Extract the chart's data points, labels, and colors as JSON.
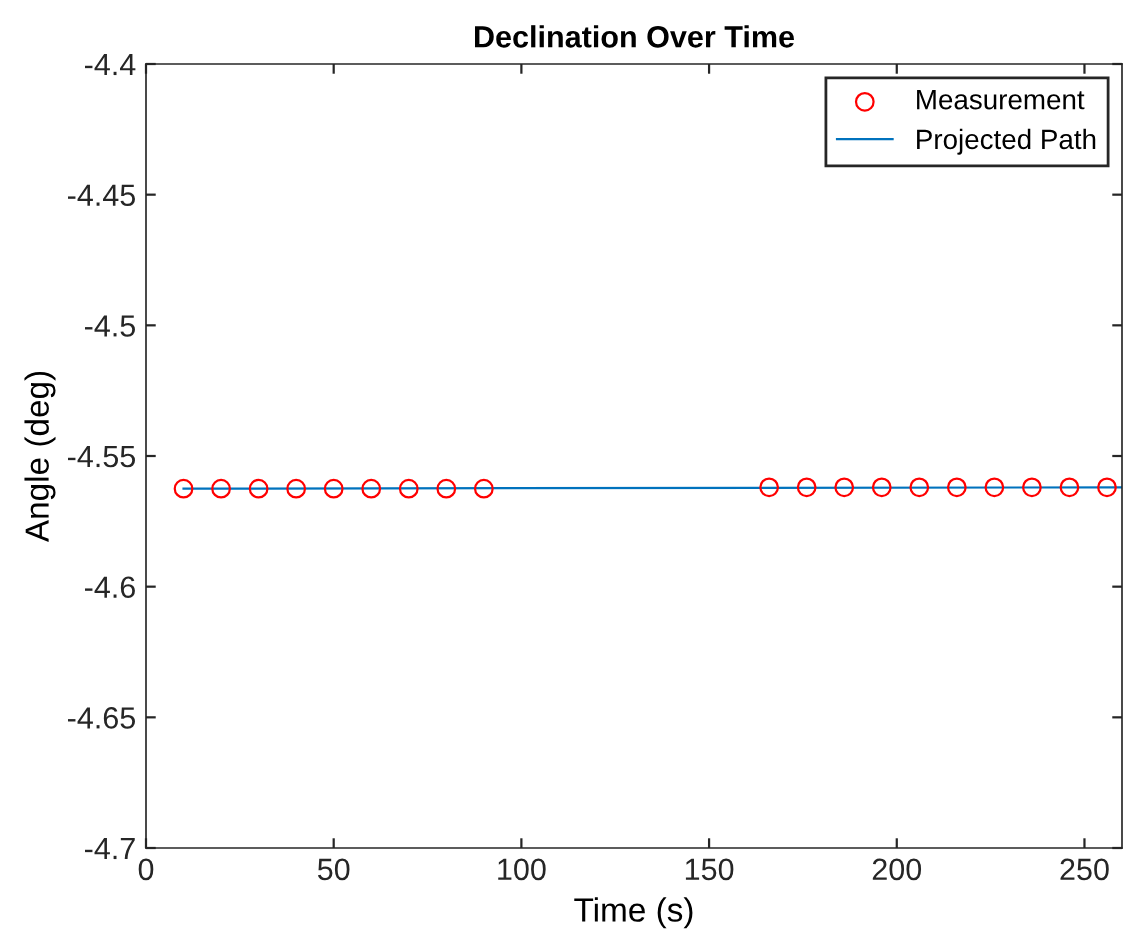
{
  "chart_data": {
    "type": "scatter",
    "title": "Declination Over Time",
    "xlabel": "Time (s)",
    "ylabel": "Angle (deg)",
    "xlim": [
      0,
      260
    ],
    "xticks": [
      0,
      50,
      100,
      150,
      200,
      250
    ],
    "ylim": [
      -4.7,
      -4.4
    ],
    "yticks": [
      -4.7,
      -4.65,
      -4.6,
      -4.55,
      -4.5,
      -4.45,
      -4.4
    ],
    "grid": false,
    "legend": "top right",
    "series": [
      {
        "name": "Measurement",
        "marker": "circle",
        "color": "#ff0000",
        "x": [
          10,
          20,
          30,
          40,
          50,
          60,
          70,
          80,
          90,
          166,
          176,
          186,
          196,
          206,
          216,
          226,
          236,
          246,
          256
        ],
        "values": [
          -4.5625,
          -4.5625,
          -4.5625,
          -4.5625,
          -4.5625,
          -4.5625,
          -4.5625,
          -4.5625,
          -4.5625,
          -4.562,
          -4.562,
          -4.562,
          -4.562,
          -4.562,
          -4.562,
          -4.562,
          -4.562,
          -4.562,
          -4.562
        ]
      },
      {
        "name": "Projected Path",
        "type": "line",
        "marker": "none",
        "line_style": "solid",
        "color": "#0072bd",
        "x": [
          10,
          260
        ],
        "values": [
          -4.5625,
          -4.562
        ]
      }
    ]
  }
}
